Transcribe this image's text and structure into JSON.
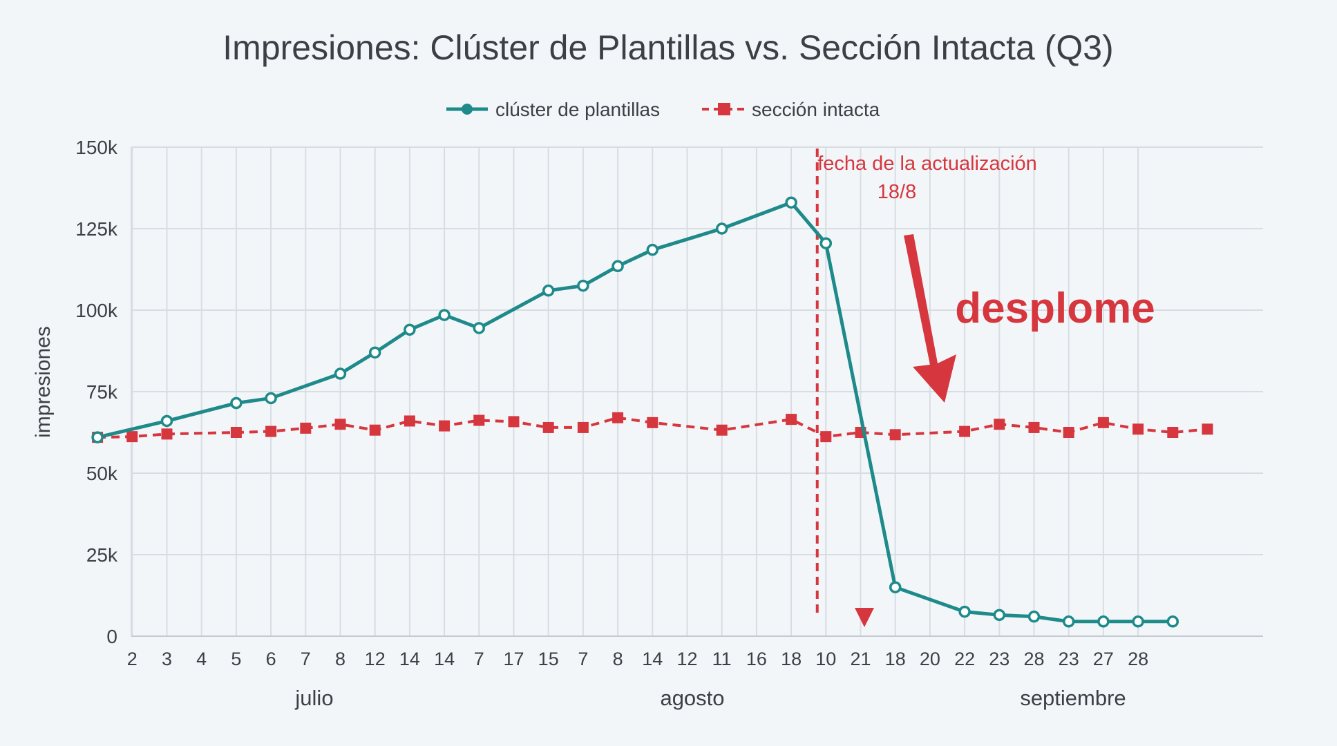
{
  "colors": {
    "cluster": "#1e8a8a",
    "intacta": "#d6363d",
    "grid": "#d7dde3",
    "text": "#3b4046",
    "annotation": "#d6363d"
  },
  "chart_data": {
    "type": "line",
    "title": "Impresiones: Clúster de Plantillas vs. Sección Intacta (Q3)",
    "xlabel": "",
    "ylabel": "impresiones",
    "ylim": [
      0,
      150000
    ],
    "yticks": [
      0,
      25000,
      50000,
      75000,
      100000,
      125000,
      150000
    ],
    "ytick_labels": [
      "0",
      "25k",
      "50k",
      "75k",
      "100k",
      "125k",
      "150k"
    ],
    "grid": true,
    "legend": "top-center",
    "x_tick_labels": [
      "2",
      "3",
      "4",
      "5",
      "6",
      "7",
      "8",
      "12",
      "14",
      "14",
      "7",
      "17",
      "15",
      "7",
      "8",
      "14",
      "12",
      "11",
      "16",
      "18",
      "10",
      "21",
      "18",
      "20",
      "22",
      "23",
      "28",
      "23",
      "27",
      "28"
    ],
    "months": [
      "julio",
      "agosto",
      "septiembre"
    ],
    "series": [
      {
        "name": "clúster de plantillas",
        "style": "solid-circle",
        "points": [
          [
            -1,
            61000
          ],
          [
            1,
            66000
          ],
          [
            3,
            71500
          ],
          [
            4,
            73000
          ],
          [
            6,
            80500
          ],
          [
            7,
            87000
          ],
          [
            8,
            94000
          ],
          [
            9,
            98500
          ],
          [
            10,
            94500
          ],
          [
            12,
            106000
          ],
          [
            13,
            107500
          ],
          [
            14,
            113500
          ],
          [
            15,
            118500
          ],
          [
            17,
            125000
          ],
          [
            19,
            133000
          ],
          [
            20,
            120500
          ],
          [
            22,
            15000
          ],
          [
            24,
            7500
          ],
          [
            25,
            6500
          ],
          [
            26,
            6000
          ],
          [
            27,
            4500
          ],
          [
            28,
            4500
          ],
          [
            29,
            4500
          ],
          [
            30,
            4500
          ]
        ]
      },
      {
        "name": "sección intacta",
        "style": "dashed-square",
        "points": [
          [
            -1,
            61000
          ],
          [
            0,
            61200
          ],
          [
            1,
            62000
          ],
          [
            3,
            62500
          ],
          [
            4,
            62800
          ],
          [
            5,
            63800
          ],
          [
            6,
            65000
          ],
          [
            7,
            63200
          ],
          [
            8,
            66000
          ],
          [
            9,
            64500
          ],
          [
            10,
            66200
          ],
          [
            11,
            65800
          ],
          [
            12,
            64000
          ],
          [
            13,
            64000
          ],
          [
            14,
            67000
          ],
          [
            15,
            65500
          ],
          [
            17,
            63200
          ],
          [
            19,
            66500
          ],
          [
            20,
            61200
          ],
          [
            21,
            62500
          ],
          [
            22,
            61800
          ],
          [
            24,
            62800
          ],
          [
            25,
            65000
          ],
          [
            26,
            64000
          ],
          [
            27,
            62500
          ],
          [
            28,
            65500
          ],
          [
            29,
            63500
          ],
          [
            30,
            62500
          ],
          [
            31,
            63500
          ]
        ]
      }
    ],
    "annotations": {
      "update_line_x": 19.75,
      "update_label": "fecha de la actualización",
      "update_date": "18/8",
      "drop_label": "desplome"
    }
  }
}
